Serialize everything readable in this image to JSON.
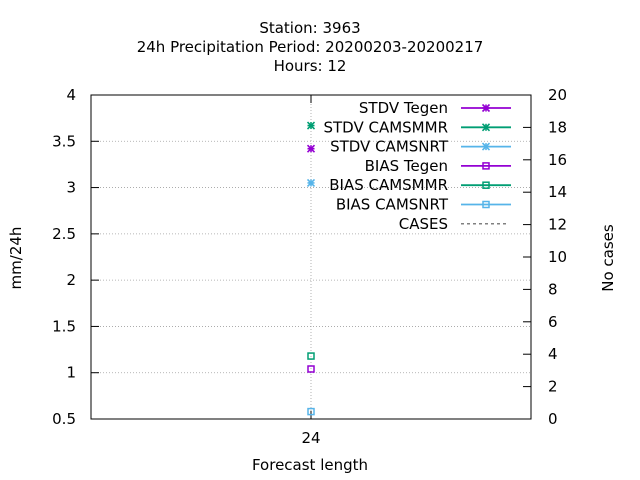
{
  "chart_data": {
    "type": "scatter",
    "title_lines": [
      "Station:     3963",
      "24h Precipitation   Period: 20200203-20200217",
      "Hours:  12"
    ],
    "xlabel": "Forecast length",
    "ylabel": "mm/24h",
    "y2label": "No cases",
    "x_ticks": [
      24
    ],
    "ylim": [
      0.5,
      4
    ],
    "y_ticks": [
      "0.5",
      "1",
      "1.5",
      "2",
      "2.5",
      "3",
      "3.5",
      "4"
    ],
    "y2lim": [
      0,
      20
    ],
    "y2_ticks": [
      "0",
      "2",
      "4",
      "6",
      "8",
      "10",
      "12",
      "14",
      "16",
      "18",
      "20"
    ],
    "grid": true,
    "legend_position": "top-right",
    "series": [
      {
        "name": "STDV Tegen",
        "marker": "star",
        "color": "#9400d3",
        "x": [
          24
        ],
        "y": [
          3.42
        ]
      },
      {
        "name": "STDV CAMSMMR",
        "marker": "star",
        "color": "#009e73",
        "x": [
          24
        ],
        "y": [
          3.67
        ]
      },
      {
        "name": "STDV CAMSNRT",
        "marker": "star",
        "color": "#56b4e9",
        "x": [
          24
        ],
        "y": [
          3.05
        ]
      },
      {
        "name": "BIAS Tegen",
        "marker": "square",
        "color": "#9400d3",
        "x": [
          24
        ],
        "y": [
          1.04
        ]
      },
      {
        "name": "BIAS CAMSMMR",
        "marker": "square",
        "color": "#009e73",
        "x": [
          24
        ],
        "y": [
          1.18
        ]
      },
      {
        "name": "BIAS CAMSNRT",
        "marker": "square",
        "color": "#56b4e9",
        "x": [
          24
        ],
        "y": [
          0.58
        ]
      },
      {
        "name": "CASES",
        "marker": "dash",
        "color": "#808080",
        "x": [],
        "y": []
      }
    ]
  }
}
